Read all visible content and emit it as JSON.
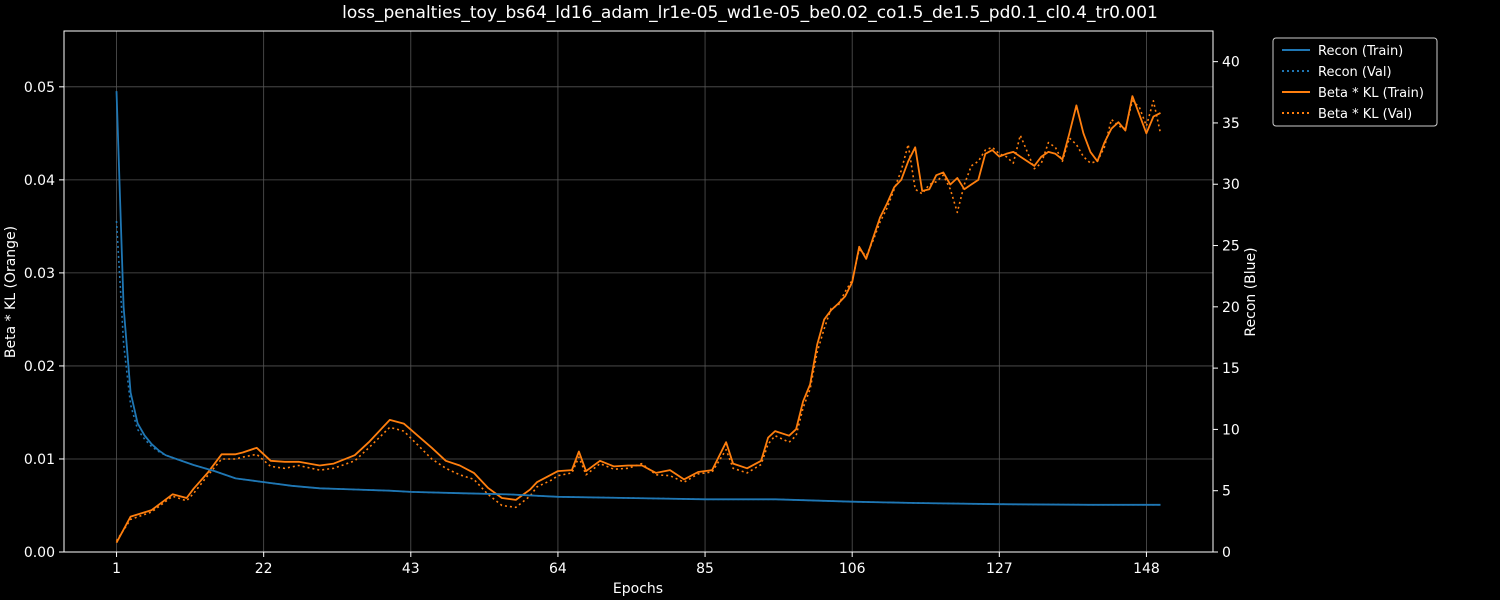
{
  "chart_data": {
    "type": "line",
    "title": "loss_penalties_toy_bs64_ld16_adam_lr1e-05_wd1e-05_be0.02_co1.5_de1.5_pd0.1_cl0.4_tr0.001",
    "xlabel": "Epochs",
    "ylabel_left": "Beta * KL (Orange)",
    "ylabel_right": "Recon (Blue)",
    "xlim": [
      -6.5,
      157.5
    ],
    "ylim_left": [
      0,
      0.056
    ],
    "ylim_right": [
      0,
      42.5
    ],
    "x_ticks": [
      1,
      22,
      43,
      64,
      85,
      106,
      127,
      148
    ],
    "y_ticks_left": [
      0.0,
      0.01,
      0.02,
      0.03,
      0.04,
      0.05
    ],
    "y_ticks_left_labels": [
      "0.00",
      "0.01",
      "0.02",
      "0.03",
      "0.04",
      "0.05"
    ],
    "y_ticks_right": [
      0,
      5,
      10,
      15,
      20,
      25,
      30,
      35,
      40
    ],
    "grid": true,
    "legend_position": "outside-top-right",
    "colors": {
      "recon": "#1f77b4",
      "kl": "#ff7f0e",
      "background": "#000000",
      "grid": "#555555"
    },
    "recon_keypoints": {
      "x": [
        1,
        2,
        3,
        4,
        5,
        6,
        7,
        8,
        10,
        12,
        15,
        18,
        22,
        26,
        30,
        35,
        40,
        43,
        50,
        57,
        64,
        75,
        85,
        95,
        106,
        115,
        127,
        140,
        150
      ],
      "train": [
        37.6,
        20.0,
        13.0,
        10.5,
        9.5,
        8.8,
        8.3,
        7.9,
        7.5,
        7.1,
        6.6,
        6.0,
        5.7,
        5.4,
        5.2,
        5.1,
        5.0,
        4.9,
        4.8,
        4.7,
        4.5,
        4.4,
        4.3,
        4.3,
        4.1,
        4.0,
        3.9,
        3.85,
        3.85
      ],
      "val": [
        27.0,
        17.0,
        12.0,
        10.0,
        9.2,
        8.6,
        8.2,
        7.9,
        7.5,
        7.1,
        6.6,
        6.0,
        5.7,
        5.4,
        5.2,
        5.1,
        5.0,
        4.9,
        4.8,
        4.7,
        4.5,
        4.4,
        4.3,
        4.3,
        4.1,
        4.0,
        3.9,
        3.85,
        3.85
      ]
    },
    "kl_keypoints": {
      "x": [
        1,
        3,
        6,
        9,
        11,
        12,
        14,
        16,
        18,
        19,
        21,
        23,
        25,
        27,
        30,
        32,
        35,
        37,
        40,
        42,
        44,
        46,
        48,
        50,
        52,
        54,
        56,
        58,
        60,
        61,
        63,
        64,
        66,
        67,
        68,
        70,
        72,
        74,
        76,
        78,
        80,
        82,
        84,
        86,
        88,
        89,
        91,
        93,
        94,
        95,
        97,
        98,
        99,
        100,
        101,
        102,
        103,
        104,
        105,
        106,
        107,
        108,
        109,
        110,
        111,
        112,
        113,
        114,
        115,
        116,
        117,
        118,
        119,
        120,
        121,
        122,
        123,
        124,
        125,
        126,
        127,
        128,
        129,
        130,
        131,
        132,
        133,
        134,
        135,
        136,
        137,
        138,
        139,
        140,
        141,
        142,
        143,
        144,
        145,
        146,
        147,
        148,
        149,
        150
      ],
      "train": [
        0.001,
        0.0038,
        0.0045,
        0.0062,
        0.0058,
        0.0068,
        0.0085,
        0.0105,
        0.0105,
        0.0107,
        0.0112,
        0.0098,
        0.0097,
        0.0097,
        0.0093,
        0.0095,
        0.0104,
        0.0118,
        0.0142,
        0.0138,
        0.0125,
        0.0112,
        0.0098,
        0.0093,
        0.0085,
        0.0069,
        0.0058,
        0.0056,
        0.0067,
        0.0075,
        0.0083,
        0.0087,
        0.0088,
        0.0108,
        0.0087,
        0.0098,
        0.0092,
        0.0093,
        0.0093,
        0.0085,
        0.0088,
        0.0078,
        0.0086,
        0.0088,
        0.0118,
        0.0095,
        0.009,
        0.0098,
        0.0123,
        0.013,
        0.0125,
        0.0132,
        0.0162,
        0.018,
        0.0223,
        0.025,
        0.026,
        0.0267,
        0.0275,
        0.029,
        0.0328,
        0.0315,
        0.0338,
        0.036,
        0.0375,
        0.0392,
        0.04,
        0.042,
        0.0435,
        0.0388,
        0.039,
        0.0405,
        0.0408,
        0.0395,
        0.0402,
        0.039,
        0.0395,
        0.04,
        0.0428,
        0.0432,
        0.0425,
        0.0428,
        0.043,
        0.0425,
        0.042,
        0.0415,
        0.0425,
        0.043,
        0.0428,
        0.0422,
        0.045,
        0.048,
        0.045,
        0.043,
        0.042,
        0.044,
        0.0455,
        0.0462,
        0.0453,
        0.049,
        0.047,
        0.045,
        0.0468,
        0.0472
      ],
      "val": [
        0.0012,
        0.0035,
        0.0043,
        0.006,
        0.0055,
        0.0063,
        0.0082,
        0.01,
        0.01,
        0.0102,
        0.0105,
        0.0092,
        0.009,
        0.0093,
        0.0088,
        0.009,
        0.0098,
        0.0112,
        0.0134,
        0.013,
        0.0115,
        0.01,
        0.009,
        0.0083,
        0.0078,
        0.0062,
        0.005,
        0.0048,
        0.006,
        0.007,
        0.0077,
        0.0082,
        0.0085,
        0.0102,
        0.0083,
        0.0095,
        0.0089,
        0.009,
        0.0095,
        0.0083,
        0.0082,
        0.0075,
        0.0084,
        0.0086,
        0.011,
        0.009,
        0.0085,
        0.0094,
        0.0116,
        0.0125,
        0.0118,
        0.0125,
        0.0155,
        0.0175,
        0.0215,
        0.024,
        0.0262,
        0.0265,
        0.028,
        0.0292,
        0.0325,
        0.0318,
        0.0335,
        0.0355,
        0.037,
        0.039,
        0.041,
        0.0438,
        0.039,
        0.0385,
        0.0395,
        0.0398,
        0.0405,
        0.039,
        0.0365,
        0.0395,
        0.0415,
        0.042,
        0.0432,
        0.0435,
        0.0428,
        0.0425,
        0.0418,
        0.0448,
        0.043,
        0.0412,
        0.0418,
        0.044,
        0.0435,
        0.042,
        0.0445,
        0.0438,
        0.0425,
        0.0418,
        0.042,
        0.0435,
        0.0465,
        0.0458,
        0.0455,
        0.0485,
        0.0478,
        0.0458,
        0.0485,
        0.045
      ]
    }
  },
  "legend": {
    "items": [
      {
        "label": "Recon (Train)",
        "series": "recon",
        "style": "solid"
      },
      {
        "label": "Recon (Val)",
        "series": "recon",
        "style": "dotted"
      },
      {
        "label": "Beta * KL (Train)",
        "series": "kl",
        "style": "solid"
      },
      {
        "label": "Beta * KL (Val)",
        "series": "kl",
        "style": "dotted"
      }
    ]
  }
}
